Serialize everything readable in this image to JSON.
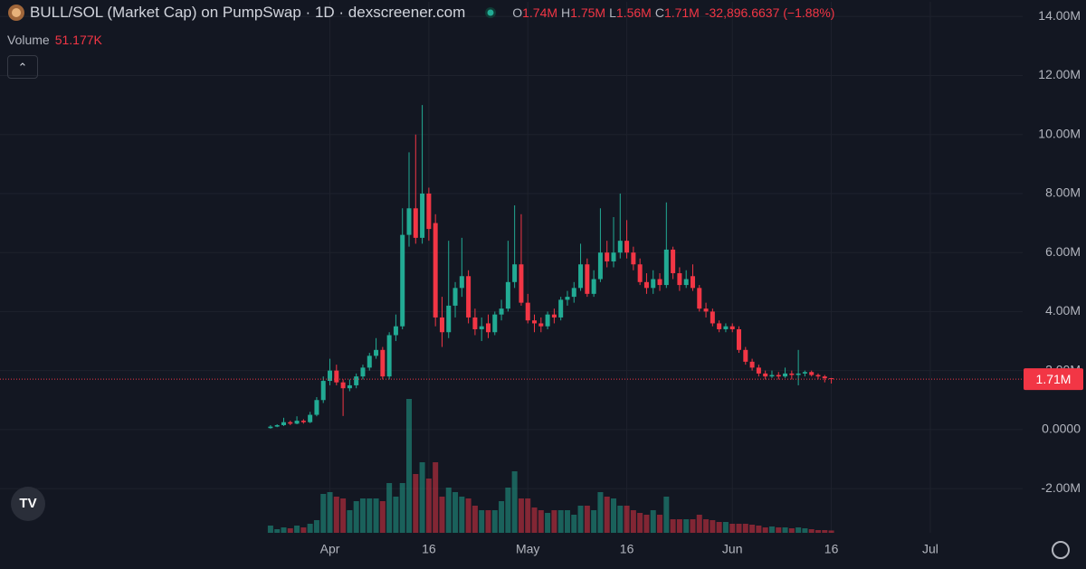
{
  "header": {
    "title": "BULL/SOL (Market Cap) on PumpSwap · 1D · dexscreener.com",
    "ohlc": [
      {
        "key": "O",
        "text": "1.74M"
      },
      {
        "key": "H",
        "text": "1.75M"
      },
      {
        "key": "L",
        "text": "1.56M"
      },
      {
        "key": "C",
        "text": "1.71M"
      }
    ],
    "change": "-32,896.6637 (−1.88%)",
    "volume_title": "Volume",
    "volume_text": "51.177K"
  },
  "chart_data": {
    "type": "candlestick",
    "x": [
      "Mar 23",
      "Mar 24",
      "Mar 25",
      "Mar 26",
      "Mar 27",
      "Mar 28",
      "Mar 29",
      "Mar 30",
      "Mar 31",
      "Apr 1",
      "Apr 2",
      "Apr 3",
      "Apr 4",
      "Apr 5",
      "Apr 6",
      "Apr 7",
      "Apr 8",
      "Apr 9",
      "Apr 10",
      "Apr 11",
      "Apr 12",
      "Apr 13",
      "Apr 14",
      "Apr 15",
      "Apr 16",
      "Apr 17",
      "Apr 18",
      "Apr 19",
      "Apr 20",
      "Apr 21",
      "Apr 22",
      "Apr 23",
      "Apr 24",
      "Apr 25",
      "Apr 26",
      "Apr 27",
      "Apr 28",
      "Apr 29",
      "Apr 30",
      "May 1",
      "May 2",
      "May 3",
      "May 4",
      "May 5",
      "May 6",
      "May 7",
      "May 8",
      "May 9",
      "May 10",
      "May 11",
      "May 12",
      "May 13",
      "May 14",
      "May 15",
      "May 16",
      "May 17",
      "May 18",
      "May 19",
      "May 20",
      "May 21",
      "May 22",
      "May 23",
      "May 24",
      "May 25",
      "May 26",
      "May 27",
      "May 28",
      "May 29",
      "May 30",
      "May 31",
      "Jun 1",
      "Jun 2",
      "Jun 3",
      "Jun 4",
      "Jun 5",
      "Jun 6",
      "Jun 7",
      "Jun 8",
      "Jun 9",
      "Jun 10",
      "Jun 11",
      "Jun 12",
      "Jun 13",
      "Jun 14",
      "Jun 15",
      "Jun 16"
    ],
    "open": [
      0.05,
      0.1,
      0.15,
      0.25,
      0.2,
      0.3,
      0.25,
      0.5,
      1.0,
      1.65,
      2.0,
      1.6,
      1.4,
      1.5,
      1.8,
      2.1,
      2.5,
      2.7,
      1.8,
      3.2,
      3.5,
      6.6,
      7.5,
      6.5,
      8.0,
      7.0,
      3.8,
      3.3,
      4.2,
      4.8,
      5.2,
      3.8,
      3.4,
      3.6,
      3.3,
      3.9,
      4.1,
      5.0,
      5.6,
      4.3,
      3.7,
      3.6,
      3.5,
      3.9,
      3.8,
      4.4,
      4.5,
      4.8,
      5.6,
      4.6,
      5.1,
      6.0,
      5.7,
      6.0,
      6.4,
      6.0,
      5.6,
      5.0,
      4.8,
      5.1,
      4.9,
      6.1,
      5.3,
      4.9,
      5.2,
      4.8,
      4.1,
      4.0,
      3.6,
      3.4,
      3.5,
      3.4,
      2.7,
      2.3,
      2.1,
      1.9,
      1.8,
      1.85,
      1.8,
      1.9,
      1.85,
      1.9,
      1.95,
      1.85,
      1.8,
      1.74
    ],
    "high": [
      0.15,
      0.18,
      0.4,
      0.3,
      0.45,
      0.35,
      0.6,
      1.1,
      1.8,
      2.4,
      2.2,
      1.7,
      1.7,
      1.9,
      2.2,
      2.6,
      3.1,
      2.8,
      3.3,
      3.9,
      7.5,
      9.4,
      10.0,
      11.0,
      8.2,
      7.3,
      4.5,
      6.4,
      5.0,
      6.5,
      5.4,
      4.1,
      3.8,
      3.9,
      4.0,
      4.4,
      6.4,
      7.6,
      7.3,
      4.6,
      3.9,
      3.8,
      4.0,
      4.1,
      4.5,
      4.7,
      5.0,
      6.3,
      5.8,
      5.4,
      7.5,
      6.4,
      7.2,
      8.0,
      7.1,
      6.2,
      5.8,
      5.3,
      5.4,
      5.3,
      7.7,
      6.2,
      5.5,
      5.4,
      5.6,
      4.9,
      4.3,
      4.1,
      3.7,
      3.6,
      3.6,
      3.5,
      2.8,
      2.4,
      2.2,
      2.0,
      2.0,
      1.95,
      2.1,
      2.0,
      2.7,
      2.0,
      2.0,
      1.9,
      1.85,
      1.75
    ],
    "low": [
      0.03,
      0.08,
      0.12,
      0.15,
      0.18,
      0.2,
      0.22,
      0.45,
      0.9,
      1.5,
      1.5,
      0.46,
      1.3,
      1.4,
      1.7,
      2.0,
      2.4,
      1.7,
      1.7,
      3.0,
      3.4,
      6.2,
      6.3,
      6.3,
      6.4,
      3.5,
      2.8,
      3.1,
      3.8,
      4.5,
      3.6,
      3.2,
      3.0,
      3.1,
      3.2,
      3.7,
      4.0,
      4.8,
      4.2,
      3.6,
      3.3,
      3.3,
      3.4,
      3.6,
      3.7,
      4.2,
      4.3,
      4.7,
      4.5,
      4.5,
      5.0,
      5.5,
      5.5,
      5.8,
      5.8,
      5.4,
      4.9,
      4.6,
      4.6,
      4.7,
      4.8,
      5.1,
      4.7,
      4.8,
      4.7,
      4.0,
      3.8,
      3.5,
      3.3,
      3.3,
      3.3,
      2.6,
      2.2,
      2.0,
      1.8,
      1.7,
      1.75,
      1.7,
      1.75,
      1.7,
      1.5,
      1.8,
      1.8,
      1.7,
      1.6,
      1.56
    ],
    "close": [
      0.1,
      0.15,
      0.25,
      0.2,
      0.3,
      0.25,
      0.5,
      1.0,
      1.65,
      2.0,
      1.6,
      1.4,
      1.5,
      1.8,
      2.1,
      2.5,
      2.7,
      1.8,
      3.2,
      3.5,
      6.6,
      7.5,
      6.5,
      8.0,
      6.8,
      3.8,
      3.3,
      4.2,
      4.8,
      5.2,
      3.8,
      3.4,
      3.5,
      3.3,
      3.9,
      4.1,
      5.0,
      5.6,
      4.3,
      3.7,
      3.6,
      3.5,
      3.9,
      3.8,
      4.4,
      4.5,
      4.8,
      5.6,
      4.6,
      5.1,
      6.0,
      5.7,
      6.0,
      6.4,
      6.0,
      5.6,
      5.0,
      4.8,
      5.1,
      4.9,
      6.1,
      5.3,
      4.9,
      5.1,
      4.8,
      4.1,
      4.0,
      3.6,
      3.4,
      3.5,
      3.4,
      2.7,
      2.3,
      2.1,
      1.9,
      1.8,
      1.85,
      1.8,
      1.9,
      1.85,
      1.9,
      1.95,
      1.85,
      1.8,
      1.74,
      1.71
    ],
    "volume": [
      160,
      80,
      120,
      100,
      160,
      120,
      200,
      280,
      860,
      900,
      800,
      760,
      500,
      700,
      760,
      760,
      760,
      700,
      1100,
      800,
      1100,
      2960,
      1300,
      1560,
      1200,
      1560,
      800,
      1000,
      900,
      800,
      760,
      600,
      500,
      500,
      500,
      700,
      1000,
      1360,
      760,
      760,
      560,
      500,
      440,
      500,
      500,
      500,
      400,
      600,
      600,
      500,
      900,
      800,
      760,
      600,
      600,
      500,
      440,
      400,
      500,
      400,
      800,
      300,
      300,
      300,
      300,
      400,
      300,
      280,
      240,
      240,
      200,
      200,
      200,
      180,
      160,
      120,
      140,
      120,
      120,
      100,
      120,
      100,
      80,
      60,
      60,
      51.177
    ],
    "xlim": [
      "Feb 10",
      "Jul 15"
    ],
    "xticks": [
      {
        "value": "Apr 1",
        "label": "Apr"
      },
      {
        "value": "Apr 16",
        "label": "16"
      },
      {
        "value": "May 1",
        "label": "May"
      },
      {
        "value": "May 16",
        "label": "16"
      },
      {
        "value": "Jun 1",
        "label": "Jun"
      },
      {
        "value": "Jun 16",
        "label": "16"
      },
      {
        "value": "Jul 1",
        "label": "Jul"
      }
    ],
    "ylim": [
      -3.5,
      14.5
    ],
    "yticks": [
      {
        "value": -2,
        "label": "-2.00M"
      },
      {
        "value": 0,
        "label": "0.0000"
      },
      {
        "value": 2,
        "label": "2.00M"
      },
      {
        "value": 4,
        "label": "4.00M"
      },
      {
        "value": 6,
        "label": "6.00M"
      },
      {
        "value": 8,
        "label": "8.00M"
      },
      {
        "value": 10,
        "label": "10.00M"
      },
      {
        "value": 12,
        "label": "12.00M"
      },
      {
        "value": 14,
        "label": "14.00M"
      }
    ],
    "up_color": "#22ab94",
    "down_color": "#f23645",
    "grid": true,
    "last_price": {
      "value": 1.71,
      "label": "1.71M"
    }
  }
}
